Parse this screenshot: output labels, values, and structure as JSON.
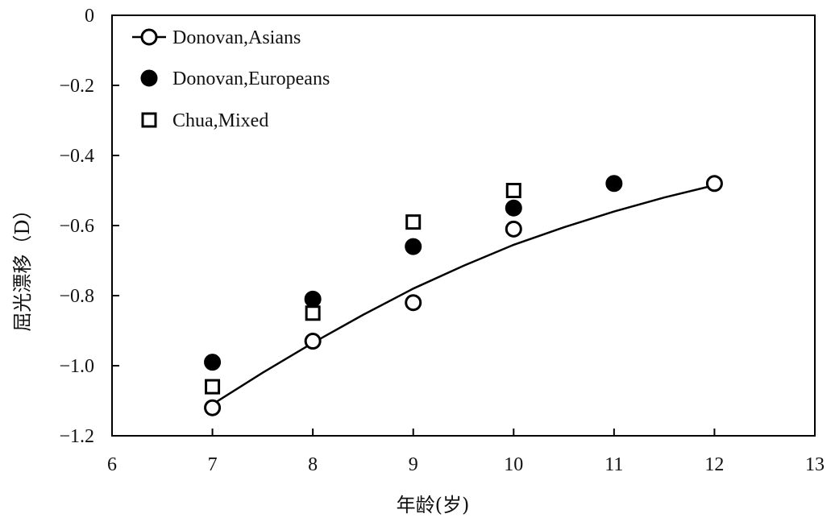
{
  "chart_data": {
    "type": "scatter",
    "xlabel": "年龄(岁)",
    "ylabel": "屈光漂移（D）",
    "xlim": [
      6,
      13
    ],
    "ylim": [
      -1.2,
      0
    ],
    "x_ticks": [
      6,
      7,
      8,
      9,
      10,
      11,
      12,
      13
    ],
    "y_ticks": [
      0,
      -0.2,
      -0.4,
      -0.6,
      -0.8,
      -1.0,
      -1.2
    ],
    "y_tick_labels": [
      "0",
      "−0.2",
      "−0.4",
      "−0.6",
      "−0.8",
      "−1.0",
      "−1.2"
    ],
    "grid": false,
    "legend_position": "top-left",
    "series": [
      {
        "name": "Donovan,Asians",
        "marker": "open-circle",
        "color": "#000000",
        "x": [
          7,
          8,
          9,
          10,
          12
        ],
        "y": [
          -1.12,
          -0.93,
          -0.82,
          -0.61,
          -0.48
        ]
      },
      {
        "name": "Donovan,Europeans",
        "marker": "filled-circle",
        "color": "#000000",
        "x": [
          7,
          8,
          9,
          10,
          11
        ],
        "y": [
          -0.99,
          -0.81,
          -0.66,
          -0.55,
          -0.48
        ]
      },
      {
        "name": "Chua,Mixed",
        "marker": "open-square",
        "color": "#000000",
        "x": [
          7,
          8,
          9,
          10
        ],
        "y": [
          -1.06,
          -0.85,
          -0.59,
          -0.5
        ]
      }
    ],
    "trend_line": {
      "x": [
        7,
        7.5,
        8,
        8.5,
        9,
        9.5,
        10,
        10.5,
        11,
        11.5,
        12
      ],
      "y": [
        -1.11,
        -1.02,
        -0.935,
        -0.855,
        -0.78,
        -0.715,
        -0.655,
        -0.605,
        -0.56,
        -0.52,
        -0.485
      ]
    }
  }
}
